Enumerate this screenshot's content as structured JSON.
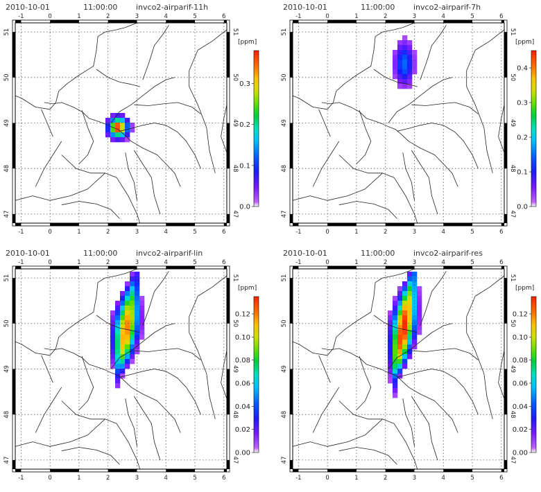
{
  "panels": [
    {
      "date": "2010-10-01",
      "time": "11:00:00",
      "name": "invco2-airparif-11h",
      "unit": "[ppm]",
      "colorbar_ticks": [
        "0.0",
        "0.1",
        "0.2",
        "0.3"
      ],
      "colorbar_max": 0.38,
      "plume": {
        "shape": "blob",
        "lon": 2.35,
        "lat": 48.9,
        "extent_lon": 0.45,
        "extent_lat": 0.3,
        "peak_value": 0.38
      }
    },
    {
      "date": "2010-10-01",
      "time": "11:00:00",
      "name": "invco2-airparif-7h",
      "unit": "[ppm]",
      "colorbar_ticks": [
        "0.0",
        "0.1",
        "0.2",
        "0.3",
        "0.4"
      ],
      "colorbar_max": 0.45,
      "plume": {
        "shape": "blob",
        "lon": 2.65,
        "lat": 50.3,
        "extent_lon": 0.45,
        "extent_lat": 0.65,
        "peak_value": 0.15
      }
    },
    {
      "date": "2010-10-01",
      "time": "11:00:00",
      "name": "invco2-airparif-lin",
      "unit": "[ppm]",
      "colorbar_ticks": [
        "0.00",
        "0.02",
        "0.04",
        "0.06",
        "0.08",
        "0.10",
        "0.12"
      ],
      "colorbar_max": 0.135,
      "plume": {
        "shape": "streak",
        "lon_start": 2.35,
        "lat_start": 48.9,
        "lon_end": 2.95,
        "lat_end": 51.05,
        "half_width_lon": 0.3,
        "peak_value": 0.12
      }
    },
    {
      "date": "2010-10-01",
      "time": "11:00:00",
      "name": "invco2-airparif-res",
      "unit": "[ppm]",
      "colorbar_ticks": [
        "0.00",
        "0.02",
        "0.04",
        "0.06",
        "0.08",
        "0.10",
        "0.12"
      ],
      "colorbar_max": 0.135,
      "plume": {
        "shape": "streak",
        "lon_start": 2.3,
        "lat_start": 48.8,
        "lon_end": 3.0,
        "lat_end": 51.2,
        "half_width_lon": 0.28,
        "peak_value": 0.135
      }
    }
  ],
  "map": {
    "lon_range": [
      -1.2,
      6.1
    ],
    "lat_range": [
      46.8,
      51.2
    ],
    "lon_ticks": [
      "-1",
      "0",
      "1",
      "2",
      "3",
      "4",
      "5",
      "6"
    ],
    "lat_ticks": [
      "47",
      "48",
      "49",
      "50",
      "51"
    ]
  }
}
